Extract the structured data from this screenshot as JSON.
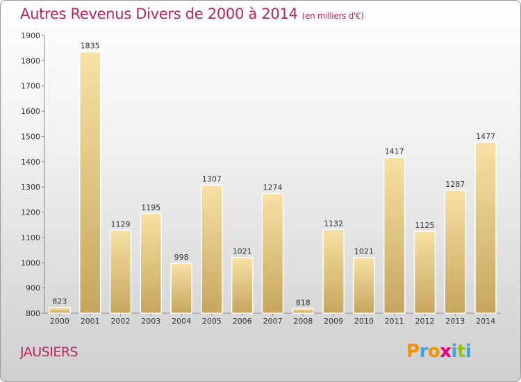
{
  "chart_data": {
    "type": "bar",
    "title": "Autres Revenus Divers de 2000 à 2014",
    "unit": "(en milliers d'€)",
    "categories": [
      "2000",
      "2001",
      "2002",
      "2003",
      "2004",
      "2005",
      "2006",
      "2007",
      "2008",
      "2009",
      "2010",
      "2011",
      "2012",
      "2013",
      "2014"
    ],
    "values": [
      823,
      1835,
      1129,
      1195,
      998,
      1307,
      1021,
      1274,
      818,
      1132,
      1021,
      1417,
      1125,
      1287,
      1477
    ],
    "ylim": [
      800,
      1900
    ],
    "yticks": [
      800,
      900,
      1000,
      1100,
      1200,
      1300,
      1400,
      1500,
      1600,
      1700,
      1800,
      1900
    ],
    "grid": false
  },
  "location": "JAUSIERS",
  "brand": {
    "letters": [
      "P",
      "r",
      "o",
      "x",
      "i",
      "t",
      "i"
    ],
    "colors": [
      "#f39200",
      "#3aa6dd",
      "#f39200",
      "#e2007a",
      "#3aa6dd",
      "#95c11f",
      "#3aa6dd"
    ]
  },
  "colors": {
    "title": "#b5275e",
    "bar_light": "#f5dc9c",
    "bar_dark": "#c8aa62"
  }
}
